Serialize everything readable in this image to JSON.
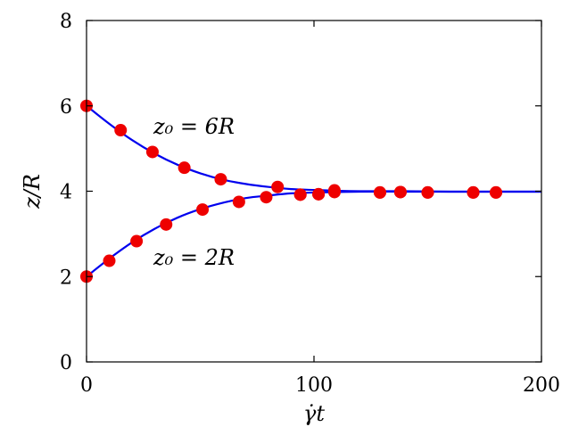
{
  "chart_data": {
    "type": "line",
    "xlabel": "γ̇t",
    "ylabel": "z/R",
    "xlim": [
      0,
      200
    ],
    "ylim": [
      0,
      8
    ],
    "xticks": [
      0,
      100,
      200
    ],
    "yticks": [
      0,
      2,
      4,
      6,
      8
    ],
    "grid": false,
    "colors": {
      "line": "#0000ee",
      "marker": "#ee0000"
    },
    "annotations": [
      {
        "text": "z₀ = 6R",
        "x": 29,
        "y": 5.4
      },
      {
        "text": "z₀ = 2R",
        "x": 29,
        "y": 2.4
      }
    ],
    "series": [
      {
        "x": [
          0,
          15,
          29,
          43,
          59,
          84,
          94,
          102,
          109,
          129,
          138,
          150,
          170,
          180
        ],
        "y": [
          6.0,
          5.43,
          4.92,
          4.55,
          4.28,
          4.1,
          3.92,
          3.93,
          4.02,
          3.97,
          3.98,
          3.97,
          3.97,
          3.97
        ],
        "curve_x": [
          0,
          10,
          20,
          30,
          40,
          50,
          60,
          70,
          80,
          90,
          100,
          110,
          120,
          140,
          160,
          180,
          200
        ],
        "curve_y": [
          6.0,
          5.58,
          5.2,
          4.88,
          4.62,
          4.42,
          4.27,
          4.17,
          4.1,
          4.05,
          4.03,
          4.01,
          4.0,
          4.0,
          3.99,
          3.99,
          3.99
        ]
      },
      {
        "x": [
          0,
          10,
          22,
          35,
          51,
          67,
          79,
          94,
          102,
          109,
          129,
          138,
          150,
          170,
          180
        ],
        "y": [
          2.0,
          2.37,
          2.83,
          3.22,
          3.57,
          3.75,
          3.86,
          3.92,
          3.93,
          3.98,
          3.97,
          3.98,
          3.97,
          3.97,
          3.97
        ],
        "curve_x": [
          0,
          10,
          20,
          30,
          40,
          50,
          60,
          70,
          80,
          90,
          100,
          110,
          120,
          140,
          160,
          180,
          200
        ],
        "curve_y": [
          2.0,
          2.42,
          2.8,
          3.12,
          3.38,
          3.58,
          3.73,
          3.84,
          3.9,
          3.95,
          3.97,
          3.98,
          3.99,
          3.99,
          3.99,
          3.99,
          3.99
        ]
      }
    ]
  }
}
